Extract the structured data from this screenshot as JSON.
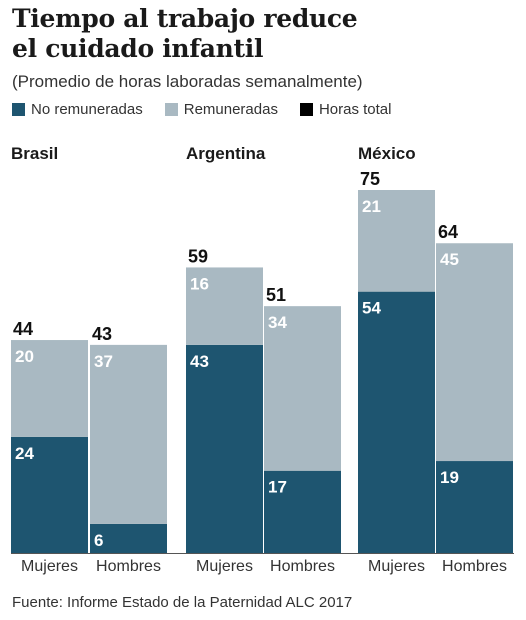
{
  "title_line1": "Tiempo al trabajo reduce",
  "title_line2": "el cuidado infantil",
  "subtitle": "(Promedio de horas laboradas semanalmente)",
  "legend": [
    {
      "label": "No remuneradas",
      "color": "#1e5570"
    },
    {
      "label": "Remuneradas",
      "color": "#a9b9c2"
    },
    {
      "label": "Horas total",
      "color": "#000000"
    }
  ],
  "source": "Fuente: Informe Estado de la Paternidad ALC 2017",
  "chart_data": {
    "type": "bar",
    "stacked": true,
    "groups": [
      "Brasil",
      "Argentina",
      "México"
    ],
    "categories": [
      "Mujeres",
      "Hombres"
    ],
    "series": [
      {
        "name": "No remuneradas",
        "color": "#1e5570",
        "values": [
          [
            24,
            6
          ],
          [
            43,
            17
          ],
          [
            54,
            19
          ]
        ]
      },
      {
        "name": "Remuneradas",
        "color": "#a9b9c2",
        "values": [
          [
            20,
            37
          ],
          [
            16,
            34
          ],
          [
            21,
            45
          ]
        ]
      }
    ],
    "totals": [
      [
        44,
        43
      ],
      [
        59,
        51
      ],
      [
        75,
        64
      ]
    ],
    "ylim": [
      0,
      80
    ]
  }
}
